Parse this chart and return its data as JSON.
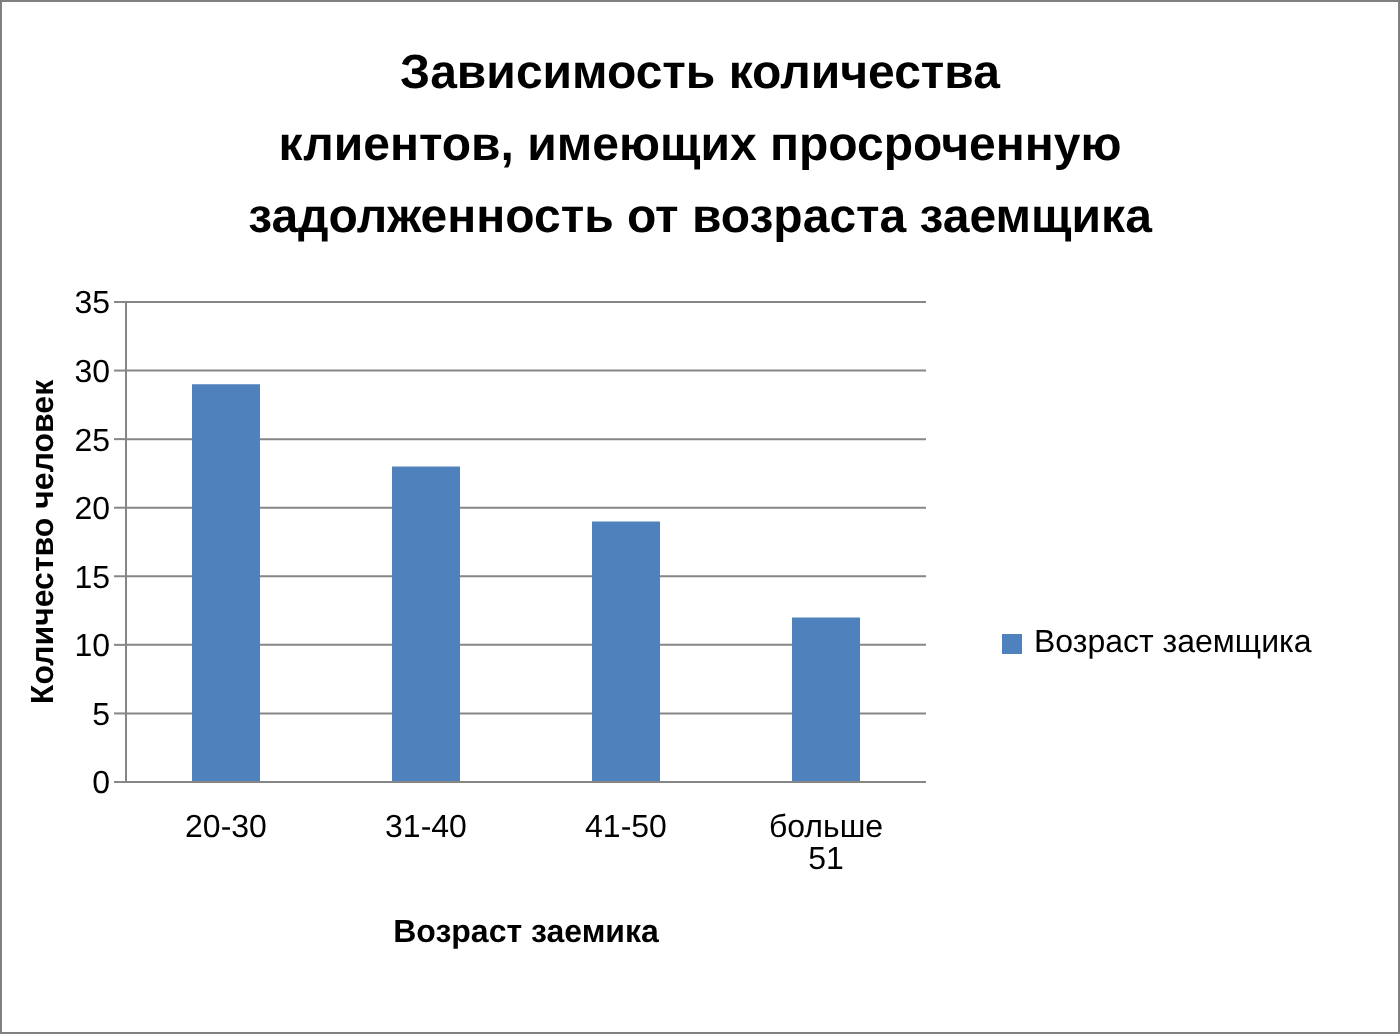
{
  "chart_data": {
    "type": "bar",
    "title": "Зависимость количества\nклиентов, имеющих просроченную\nзадолженность от возраста заемщика",
    "xlabel": "Возраст заемика",
    "ylabel": "Количество человек",
    "categories": [
      "20-30",
      "31-40",
      "41-50",
      "больше 51"
    ],
    "series": [
      {
        "name": "Возраст заемщика",
        "color": "#4f81bd",
        "values": [
          29,
          23,
          19,
          12
        ]
      }
    ],
    "ylim": [
      0,
      35
    ],
    "yticks": [
      0,
      5,
      10,
      15,
      20,
      25,
      30,
      35
    ],
    "grid": "y",
    "legend": "right"
  }
}
